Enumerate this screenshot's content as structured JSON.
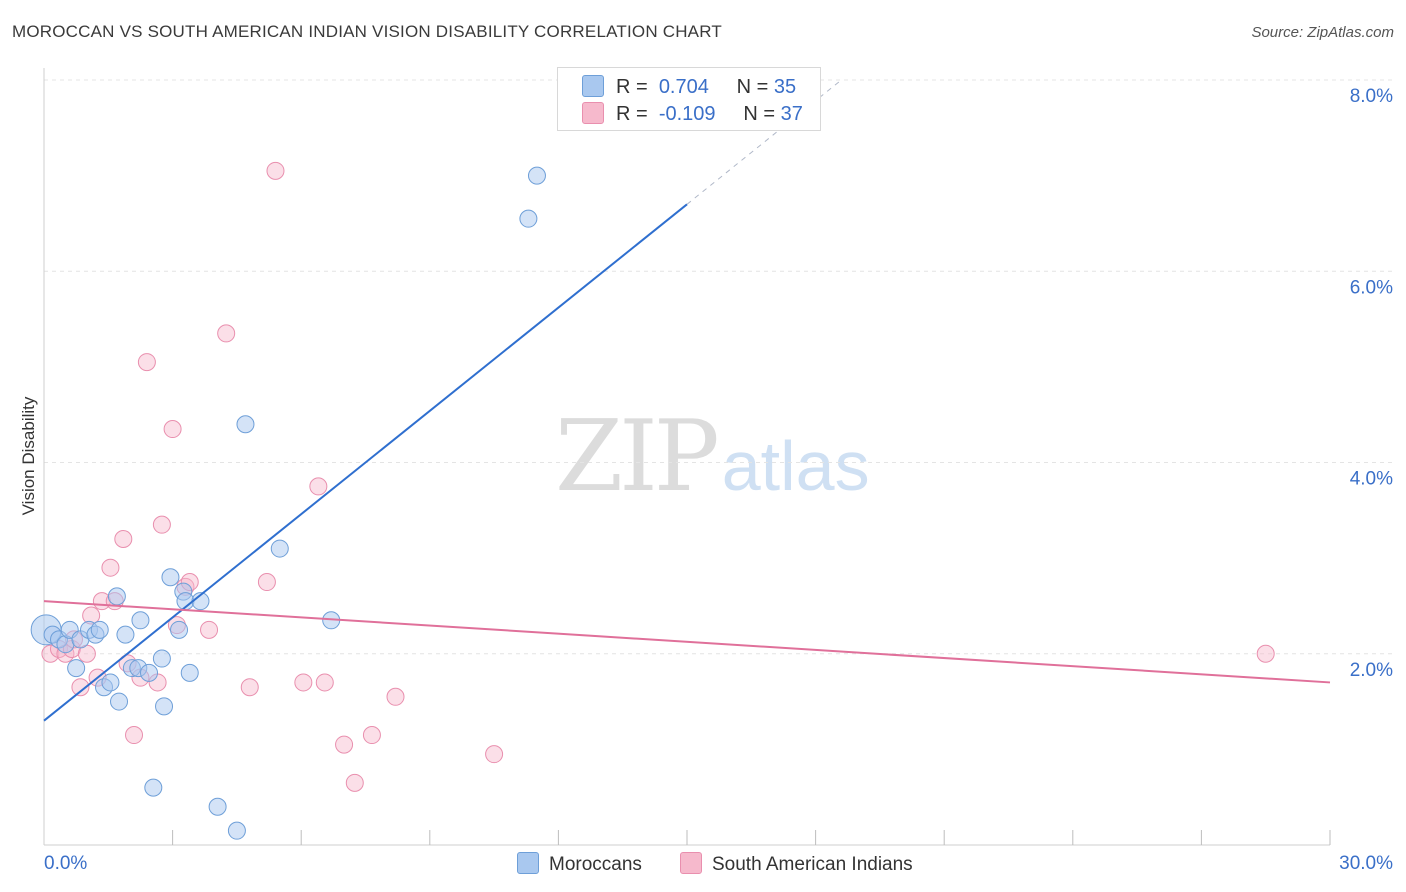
{
  "header": {
    "title": "MOROCCAN VS SOUTH AMERICAN INDIAN VISION DISABILITY CORRELATION CHART",
    "source": "Source: ZipAtlas.com"
  },
  "watermark": {
    "zip": "ZIP",
    "atlas": "atlas"
  },
  "legend": {
    "rows": [
      {
        "r_label": "R =",
        "r_value": "0.704",
        "n_label": "N =",
        "n_value": "35"
      },
      {
        "r_label": "R =",
        "r_value": "-0.109",
        "n_label": "N =",
        "n_value": "37"
      }
    ]
  },
  "colors": {
    "blue_fill": "#a9c8ef",
    "blue_stroke": "#6e9fd8",
    "blue_line": "#2f6fcf",
    "pink_fill": "#f6b9cc",
    "pink_stroke": "#e98fae",
    "pink_line": "#e0709a",
    "tick_text": "#3a6fc8",
    "grid": "#e4e4e4"
  },
  "chart_data": {
    "type": "scatter",
    "title": "MOROCCAN VS SOUTH AMERICAN INDIAN VISION DISABILITY CORRELATION CHART",
    "xlabel": "",
    "ylabel": "Vision Disability",
    "xlim": [
      0,
      30
    ],
    "ylim": [
      0,
      8
    ],
    "x_tick_labels": [
      {
        "value": 0,
        "label": "0.0%"
      },
      {
        "value": 30,
        "label": "30.0%"
      }
    ],
    "y_tick_labels": [
      {
        "value": 2,
        "label": "2.0%"
      },
      {
        "value": 4,
        "label": "4.0%"
      },
      {
        "value": 6,
        "label": "6.0%"
      },
      {
        "value": 8,
        "label": "8.0%"
      }
    ],
    "x_minor_ticks": [
      3,
      6,
      9,
      12,
      15,
      18,
      21,
      24,
      27,
      30
    ],
    "grid": true,
    "legend_position": "top-center",
    "series": [
      {
        "name": "Moroccans",
        "color": "#a9c8ef",
        "r": 0.704,
        "n": 35,
        "trend": {
          "x1": 0,
          "y1": 1.3,
          "x2": 15,
          "y2": 6.7,
          "dash_to_x": 18.6,
          "dash_to_y": 8.0
        },
        "points": [
          {
            "x": 0.05,
            "y": 2.25,
            "big": true
          },
          {
            "x": 0.2,
            "y": 2.2
          },
          {
            "x": 0.35,
            "y": 2.15
          },
          {
            "x": 0.5,
            "y": 2.1
          },
          {
            "x": 0.6,
            "y": 2.25
          },
          {
            "x": 0.75,
            "y": 1.85
          },
          {
            "x": 0.85,
            "y": 2.15
          },
          {
            "x": 1.05,
            "y": 2.25
          },
          {
            "x": 1.2,
            "y": 2.2
          },
          {
            "x": 1.3,
            "y": 2.25
          },
          {
            "x": 1.4,
            "y": 1.65
          },
          {
            "x": 1.55,
            "y": 1.7
          },
          {
            "x": 1.7,
            "y": 2.6
          },
          {
            "x": 1.75,
            "y": 1.5
          },
          {
            "x": 1.9,
            "y": 2.2
          },
          {
            "x": 2.05,
            "y": 1.85
          },
          {
            "x": 2.2,
            "y": 1.85
          },
          {
            "x": 2.25,
            "y": 2.35
          },
          {
            "x": 2.45,
            "y": 1.8
          },
          {
            "x": 2.55,
            "y": 0.6
          },
          {
            "x": 2.75,
            "y": 1.95
          },
          {
            "x": 2.8,
            "y": 1.45
          },
          {
            "x": 2.95,
            "y": 2.8
          },
          {
            "x": 3.15,
            "y": 2.25
          },
          {
            "x": 3.25,
            "y": 2.65
          },
          {
            "x": 3.3,
            "y": 2.55
          },
          {
            "x": 3.4,
            "y": 1.8
          },
          {
            "x": 3.65,
            "y": 2.55
          },
          {
            "x": 4.05,
            "y": 0.4
          },
          {
            "x": 4.5,
            "y": 0.15
          },
          {
            "x": 4.7,
            "y": 4.4
          },
          {
            "x": 5.5,
            "y": 3.1
          },
          {
            "x": 6.7,
            "y": 2.35
          },
          {
            "x": 11.3,
            "y": 6.55
          },
          {
            "x": 11.5,
            "y": 7.0
          }
        ]
      },
      {
        "name": "South American Indians",
        "color": "#f6b9cc",
        "r": -0.109,
        "n": 37,
        "trend": {
          "x1": 0,
          "y1": 2.55,
          "x2": 30,
          "y2": 1.7
        },
        "points": [
          {
            "x": 0.15,
            "y": 2.0
          },
          {
            "x": 0.35,
            "y": 2.05
          },
          {
            "x": 0.5,
            "y": 2.0
          },
          {
            "x": 0.65,
            "y": 2.05
          },
          {
            "x": 0.7,
            "y": 2.15
          },
          {
            "x": 0.85,
            "y": 1.65
          },
          {
            "x": 1.0,
            "y": 2.0
          },
          {
            "x": 1.1,
            "y": 2.4
          },
          {
            "x": 1.25,
            "y": 1.75
          },
          {
            "x": 1.35,
            "y": 2.55
          },
          {
            "x": 1.55,
            "y": 2.9
          },
          {
            "x": 1.65,
            "y": 2.55
          },
          {
            "x": 1.85,
            "y": 3.2
          },
          {
            "x": 1.95,
            "y": 1.9
          },
          {
            "x": 2.1,
            "y": 1.15
          },
          {
            "x": 2.25,
            "y": 1.75
          },
          {
            "x": 2.4,
            "y": 5.05
          },
          {
            "x": 2.65,
            "y": 1.7
          },
          {
            "x": 2.75,
            "y": 3.35
          },
          {
            "x": 3.0,
            "y": 4.35
          },
          {
            "x": 3.1,
            "y": 2.3
          },
          {
            "x": 3.3,
            "y": 2.7
          },
          {
            "x": 3.4,
            "y": 2.75
          },
          {
            "x": 3.85,
            "y": 2.25
          },
          {
            "x": 4.25,
            "y": 5.35
          },
          {
            "x": 4.8,
            "y": 1.65
          },
          {
            "x": 5.2,
            "y": 2.75
          },
          {
            "x": 5.4,
            "y": 7.05
          },
          {
            "x": 6.05,
            "y": 1.7
          },
          {
            "x": 6.4,
            "y": 3.75
          },
          {
            "x": 6.55,
            "y": 1.7
          },
          {
            "x": 7.0,
            "y": 1.05
          },
          {
            "x": 7.25,
            "y": 0.65
          },
          {
            "x": 7.65,
            "y": 1.15
          },
          {
            "x": 8.2,
            "y": 1.55
          },
          {
            "x": 10.5,
            "y": 0.95
          },
          {
            "x": 28.5,
            "y": 2.0
          }
        ]
      }
    ]
  }
}
